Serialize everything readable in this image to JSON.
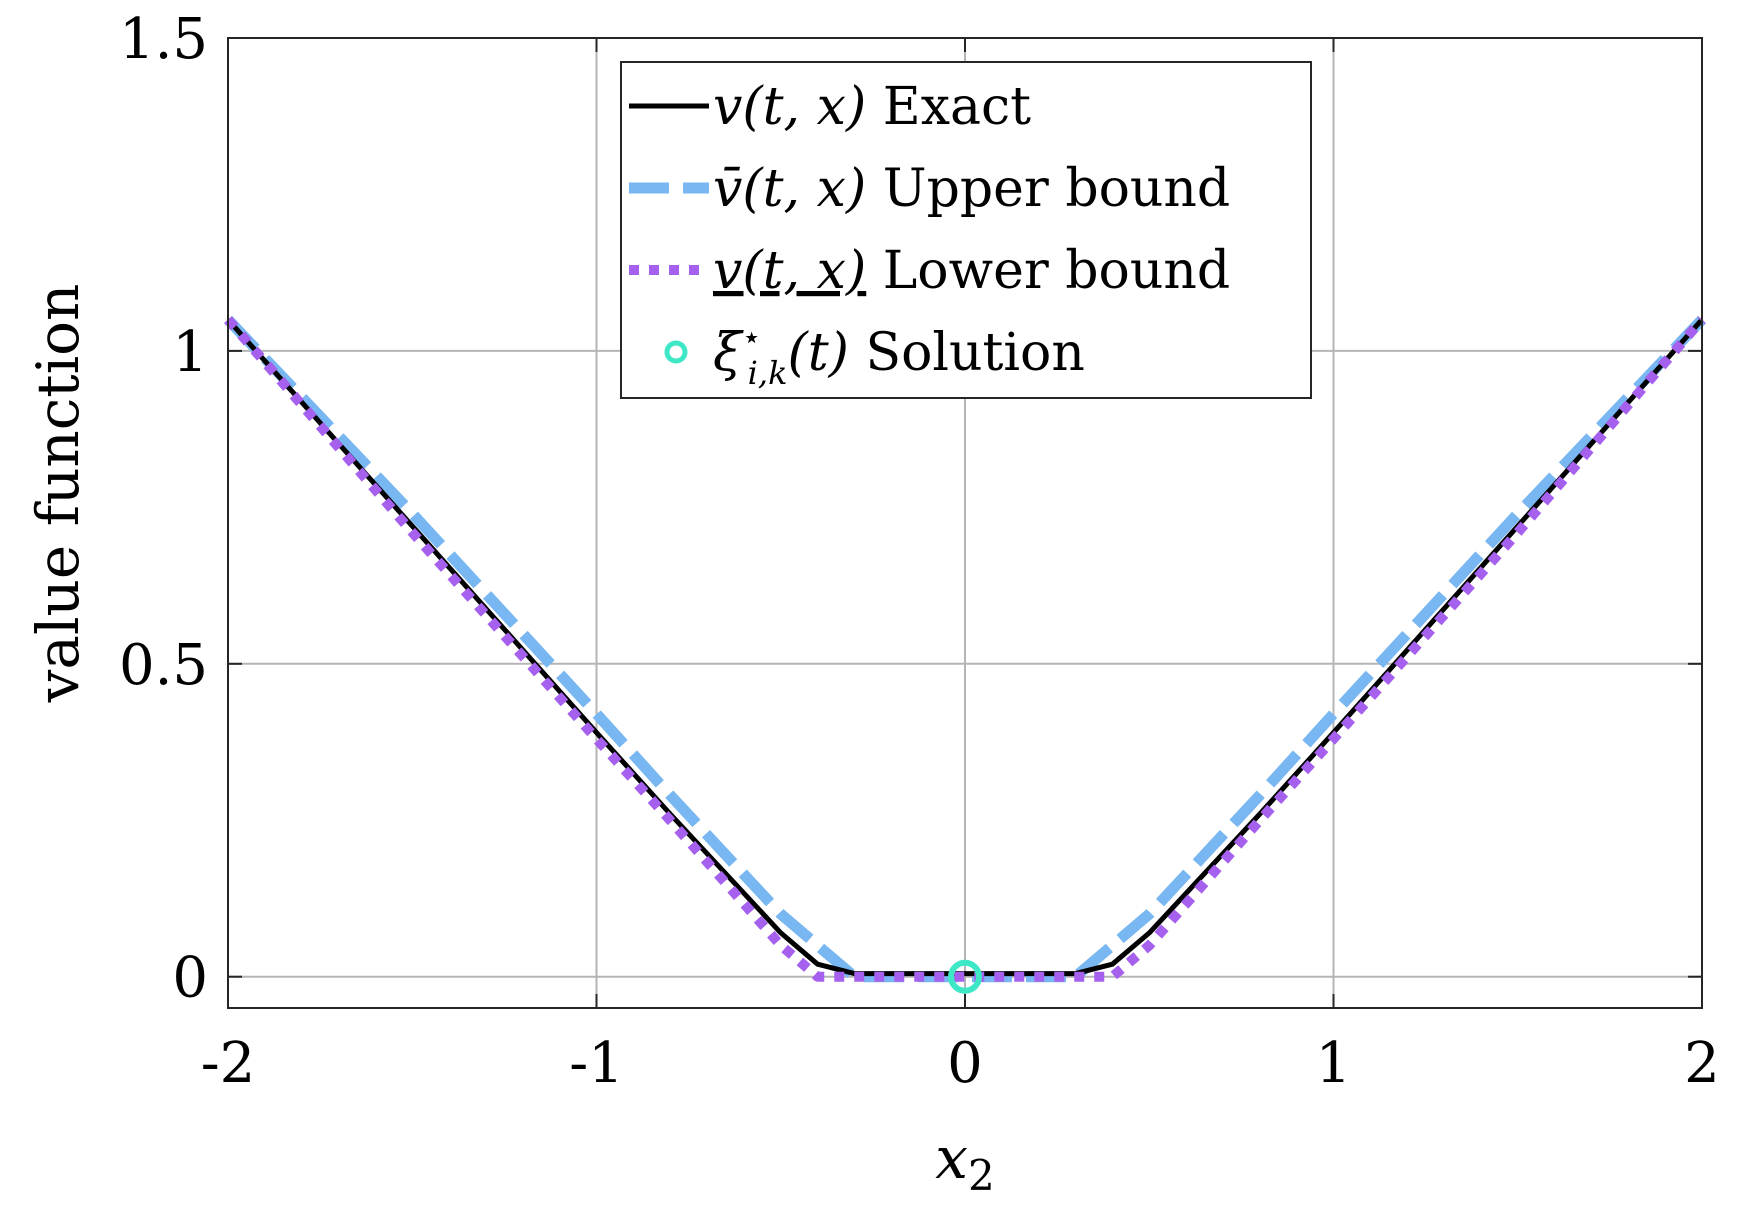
{
  "chart_data": {
    "type": "line",
    "xlabel": "x",
    "xlabel_sub": "2",
    "ylabel": "value function",
    "xlim": [
      -2,
      2
    ],
    "ylim": [
      -0.05,
      1.5
    ],
    "xticks": [
      -2,
      -1,
      0,
      1,
      2
    ],
    "xtick_labels": [
      "-2",
      "-1",
      "0",
      "1",
      "2"
    ],
    "yticks": [
      0,
      0.5,
      1,
      1.5
    ],
    "ytick_labels": [
      "0",
      "0.5",
      "1",
      "1.5"
    ],
    "grid": true,
    "legend_position": "top-center",
    "series": [
      {
        "name": "v(t, x) Exact",
        "legend_math": "v(t, x)",
        "legend_text": "Exact",
        "color": "#000000",
        "style": "solid",
        "x": [
          -2,
          -1.5,
          -1,
          -0.8,
          -0.5,
          -0.4,
          -0.3,
          0,
          0.3,
          0.4,
          0.5,
          0.8,
          1,
          1.5,
          2
        ],
        "y": [
          1.05,
          0.72,
          0.39,
          0.26,
          0.07,
          0.02,
          0.005,
          0.005,
          0.005,
          0.02,
          0.07,
          0.26,
          0.39,
          0.72,
          1.05
        ]
      },
      {
        "name": "v̄(t, x) Upper bound",
        "legend_math": "v̄(t, x)",
        "legend_text": "Upper bound",
        "color": "#78b7f2",
        "style": "dash",
        "x": [
          -2,
          -1.5,
          -1,
          -0.8,
          -0.5,
          -0.3,
          0,
          0.3,
          0.5,
          0.8,
          1,
          1.5,
          2
        ],
        "y": [
          1.05,
          0.74,
          0.42,
          0.29,
          0.1,
          0,
          0,
          0,
          0.1,
          0.29,
          0.42,
          0.74,
          1.05
        ]
      },
      {
        "name": "v(t, x) Lower bound",
        "legend_math": "v(t, x)",
        "legend_text": "Lower bound",
        "color": "#a660ee",
        "style": "dot",
        "x": [
          -2,
          -1.5,
          -1,
          -0.8,
          -0.5,
          -0.4,
          0,
          0.4,
          0.5,
          0.8,
          1,
          1.5,
          2
        ],
        "y": [
          1.05,
          0.71,
          0.38,
          0.25,
          0.05,
          0,
          0,
          0,
          0.05,
          0.25,
          0.38,
          0.71,
          1.05
        ]
      },
      {
        "name": "ξ⋆i,k(t) Solution",
        "legend_math": "ξ",
        "legend_sup": "⋆",
        "legend_sub": "i,k",
        "legend_math_tail": "(t)",
        "legend_text": "Solution",
        "color": "#3ee8c6",
        "style": "marker",
        "x": [
          0
        ],
        "y": [
          0
        ]
      }
    ]
  }
}
